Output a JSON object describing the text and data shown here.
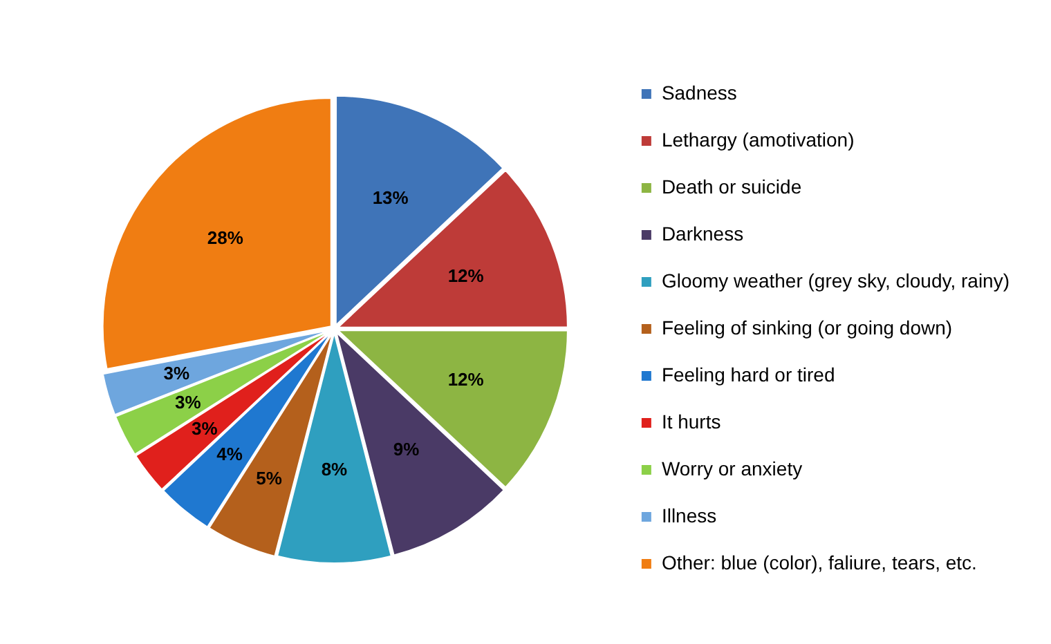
{
  "chart_data": {
    "type": "pie",
    "categories": [
      "Sadness",
      "Lethargy (amotivation)",
      "Death or suicide",
      "Darkness",
      "Gloomy weather (grey sky, cloudy, rainy)",
      "Feeling of sinking (or going down)",
      "Feeling hard or tired",
      "It hurts",
      "Worry or anxiety",
      "Illness",
      "Other: blue (color), faliure, tears, etc."
    ],
    "values": [
      13,
      12,
      12,
      9,
      8,
      5,
      4,
      3,
      3,
      3,
      28
    ],
    "value_labels": [
      "13%",
      "12%",
      "12%",
      "9%",
      "8%",
      "5%",
      "4%",
      "3%",
      "3%",
      "3%",
      "28%"
    ],
    "colors": [
      "#3f74b8",
      "#be3b38",
      "#8db543",
      "#4a3a66",
      "#2f9fbf",
      "#b4601c",
      "#1f78d0",
      "#e0201c",
      "#8cd048",
      "#6ea6de",
      "#f07d12"
    ],
    "legend": "right"
  }
}
